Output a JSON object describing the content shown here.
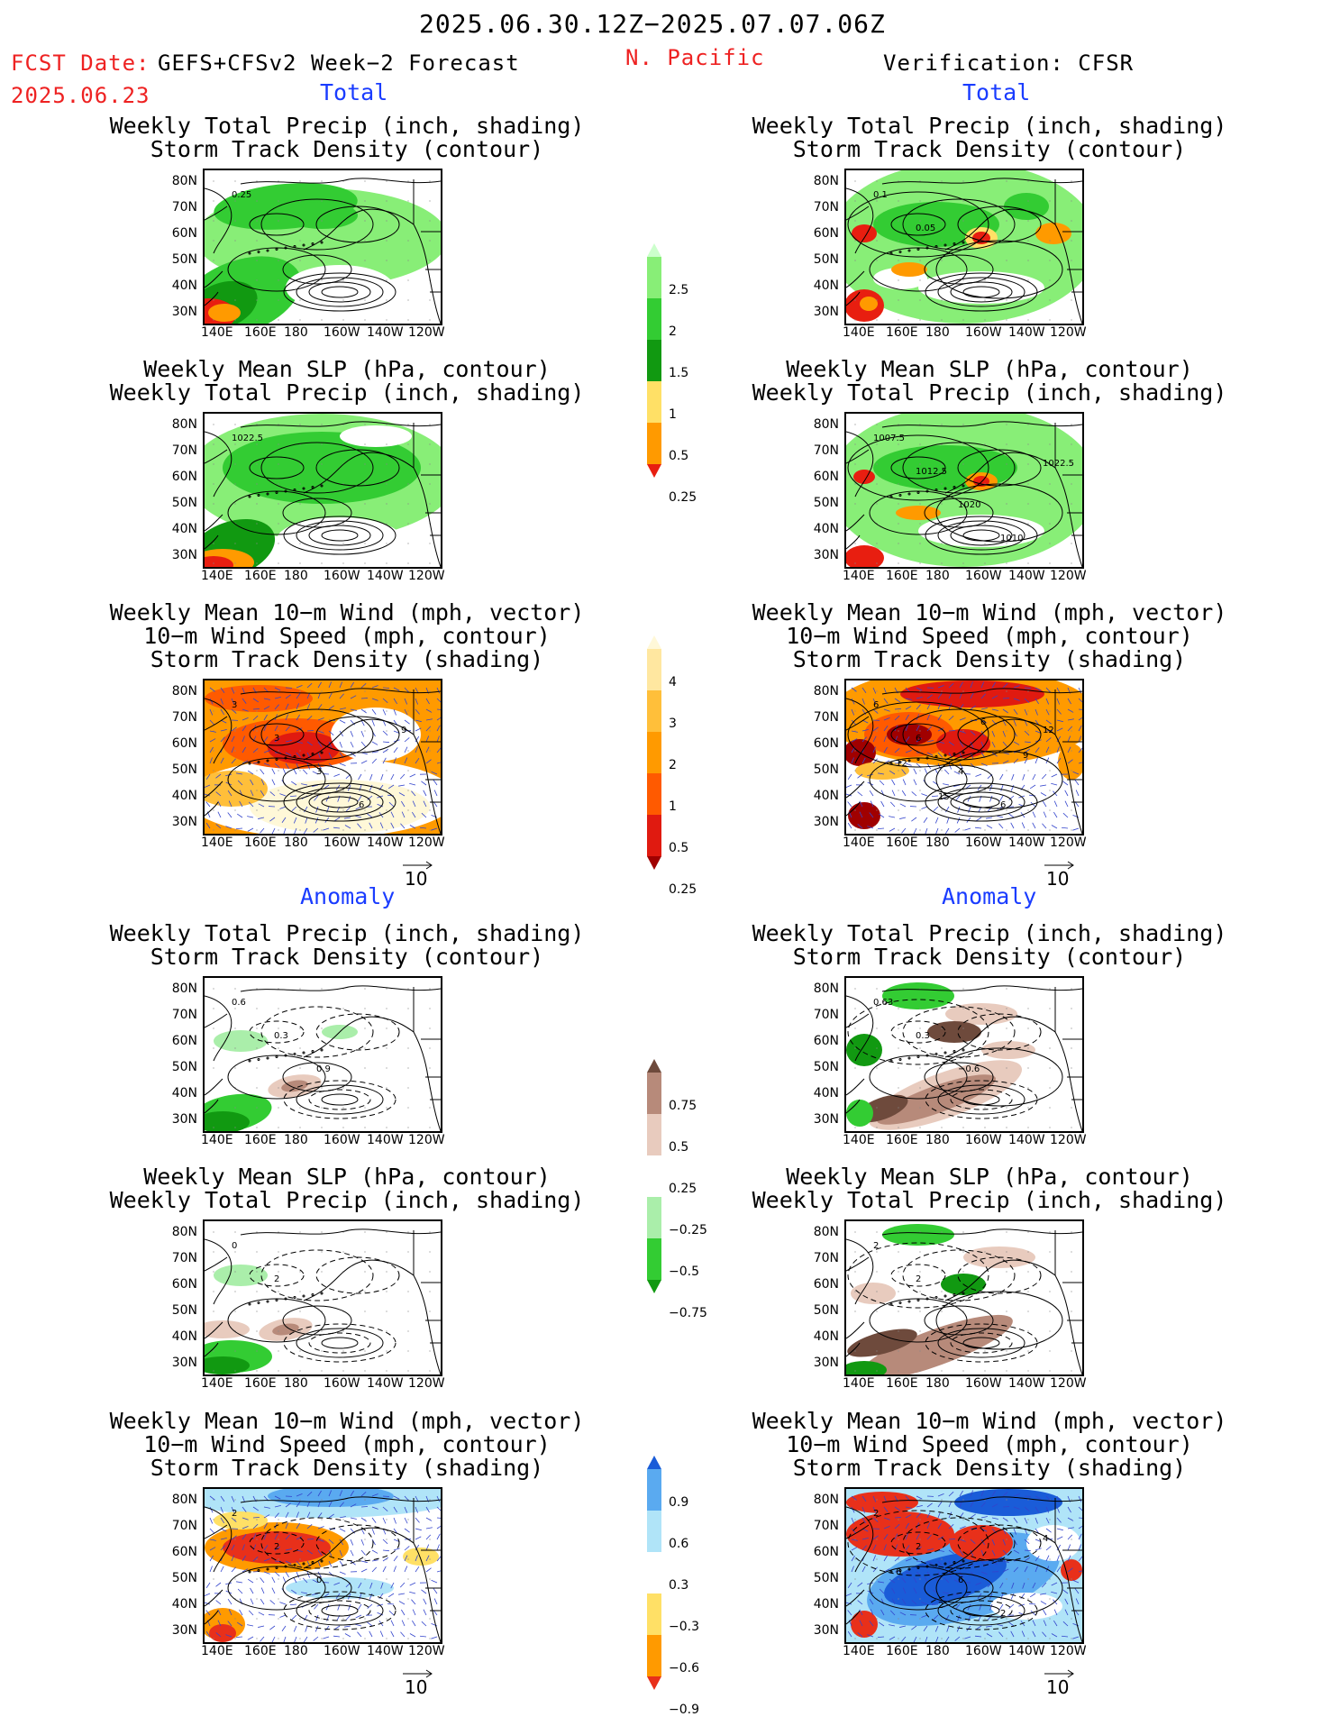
{
  "header": {
    "period": "2025.06.30.12Z−2025.07.07.06Z",
    "fcst_label": "FCST Date:",
    "model": "GEFS+CFSv2 Week−2 Forecast",
    "fcst_date": "2025.06.23",
    "region": "N. Pacific",
    "verification": "Verification: CFSR"
  },
  "sections": {
    "total_left": "Total",
    "total_right": "Total",
    "anom_left": "Anomaly",
    "anom_right": "Anomaly"
  },
  "titles": {
    "precip_storm": [
      "Weekly Total Precip (inch, shading)",
      "Storm Track Density (contour)"
    ],
    "slp_precip": [
      "Weekly Mean SLP (hPa, contour)",
      "Weekly Total Precip (inch, shading)"
    ],
    "wind_storm": [
      "Weekly Mean 10−m Wind (mph, vector)",
      "10−m Wind Speed (mph, contour)",
      "Storm Track Density (shading)"
    ]
  },
  "axes": {
    "lat": [
      "80N",
      "70N",
      "60N",
      "50N",
      "40N",
      "30N"
    ],
    "lon": [
      "140E",
      "160E",
      "180",
      "160W",
      "140W",
      "120W"
    ]
  },
  "vector_ref": "10",
  "contour_labels": {
    "p1L": [
      "0.25"
    ],
    "p1R": [
      "0.1",
      "0.05"
    ],
    "p2L": [
      "1022.5"
    ],
    "p2R": [
      "1007.5",
      "1012.5",
      "1020",
      "1010",
      "1022.5"
    ],
    "p3L": [
      "3",
      "3",
      "3",
      "6",
      "9"
    ],
    "p3R": [
      "6",
      "6",
      "4",
      "6",
      "12",
      "12",
      "15",
      "6",
      "9"
    ],
    "p4L": [
      "0.6",
      "0.3",
      "0.9"
    ],
    "p4R": [
      "0.63",
      "0.3",
      "−0.6"
    ],
    "p5L": [
      "0",
      "2"
    ],
    "p5R": [
      "2",
      "2"
    ],
    "p6L": [
      "2",
      "2",
      "0"
    ],
    "p6R": [
      "2",
      "2",
      "6",
      "2",
      "4",
      "6",
      "2"
    ]
  },
  "colorbars": {
    "precip_total": {
      "labels": [
        "2.5",
        "2",
        "1.5",
        "1",
        "0.5",
        "0.25"
      ],
      "colors": [
        "#e81e10",
        "#ff9a00",
        "#ffe066",
        "#119911",
        "#33cc33",
        "#88ee77",
        "#ccffcc"
      ]
    },
    "storm_total": {
      "labels": [
        "4",
        "3",
        "2",
        "1",
        "0.5",
        "0.25"
      ],
      "colors": [
        "#a00000",
        "#e01a10",
        "#ff5a00",
        "#ff9a00",
        "#ffbf3a",
        "#ffe7a0",
        "#fff8d8"
      ]
    },
    "precip_anom": {
      "labels": [
        "0.75",
        "0.5",
        "0.25",
        "−0.25",
        "−0.5",
        "−0.75"
      ],
      "colors": [
        "#119911",
        "#33cc33",
        "#aaeeaa",
        "#ffffff",
        "#e8cbbe",
        "#b78a7a",
        "#6e4a3c"
      ]
    },
    "storm_anom": {
      "labels": [
        "0.9",
        "0.6",
        "0.3",
        "−0.3",
        "−0.6",
        "−0.9"
      ],
      "colors": [
        "#e8301a",
        "#ff9a00",
        "#ffe066",
        "#ffffff",
        "#b0e4f8",
        "#5aaaf0",
        "#1a5cd8"
      ]
    }
  }
}
